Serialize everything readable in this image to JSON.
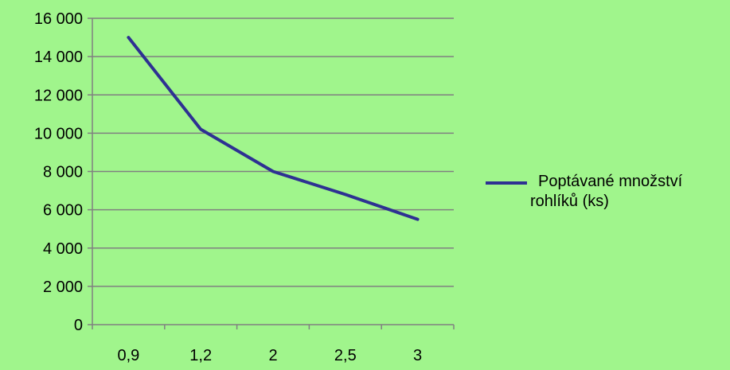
{
  "chart_data": {
    "type": "line",
    "categories": [
      "0,9",
      "1,2",
      "2",
      "2,5",
      "3"
    ],
    "series": [
      {
        "name": "Poptávané množství rohlíků (ks)",
        "values": [
          15000,
          10200,
          8000,
          6800,
          5500
        ],
        "color": "#2e3192"
      }
    ],
    "y_ticks": [
      "0",
      "2 000",
      "4 000",
      "6 000",
      "8 000",
      "10 000",
      "12 000",
      "14 000",
      "16 000"
    ],
    "ylim": [
      0,
      16000
    ],
    "grid": "horizontal",
    "legend_position": "right",
    "background_color": "#a0f58c",
    "grid_color": "#808080"
  }
}
